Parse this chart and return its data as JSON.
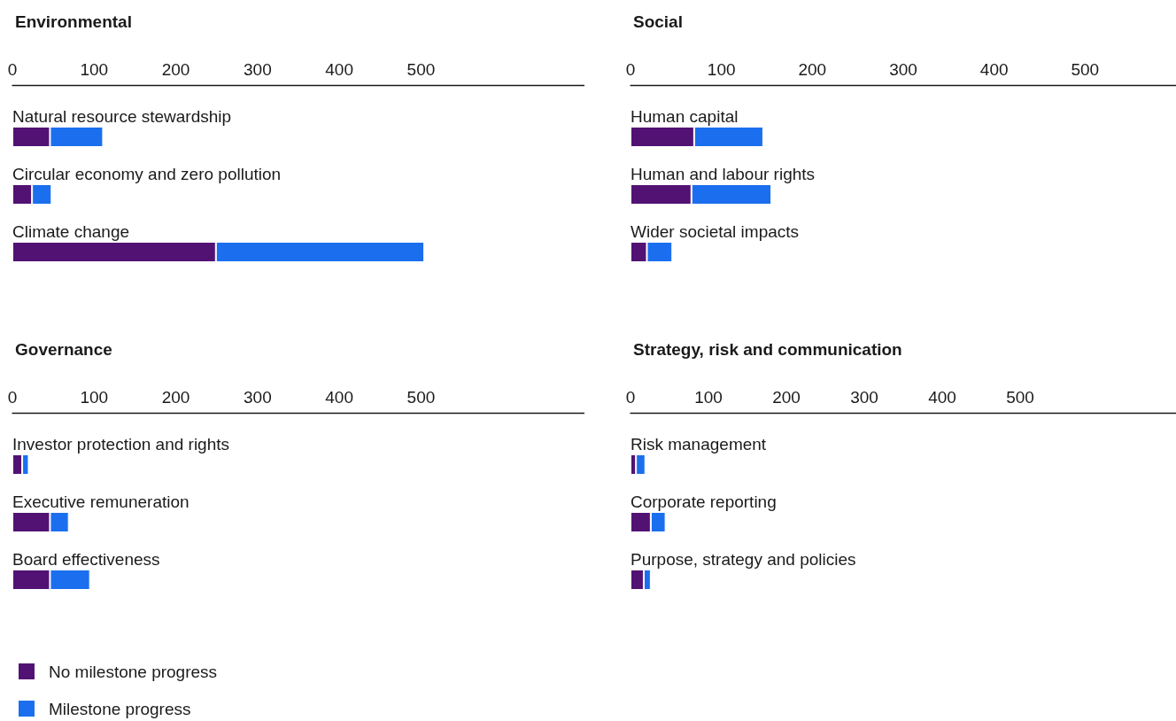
{
  "chart_data": [
    {
      "type": "bar",
      "orientation": "horizontal",
      "stacked": true,
      "title": "Environmental",
      "categories": [
        "Natural resource stewardship",
        "Circular economy and zero pollution",
        "Climate change"
      ],
      "xlim": [
        0,
        700
      ],
      "xticks": [
        0,
        100,
        200,
        300,
        400,
        500
      ],
      "grid": false,
      "legend": false,
      "series": [
        {
          "color": "#521273",
          "values": [
            46,
            24,
            249
          ]
        },
        {
          "color": "#1b6fee",
          "values": [
            65,
            24,
            255
          ]
        }
      ]
    },
    {
      "type": "bar",
      "orientation": "horizontal",
      "stacked": true,
      "title": "Social",
      "categories": [
        "Human capital",
        "Human and labour rights",
        "Wider societal impacts"
      ],
      "xlim": [
        0,
        600
      ],
      "xticks": [
        0,
        100,
        200,
        300,
        400,
        500
      ],
      "grid": false,
      "legend": false,
      "series": [
        {
          "color": "#521273",
          "values": [
            70,
            67,
            18
          ]
        },
        {
          "color": "#1b6fee",
          "values": [
            76,
            88,
            28
          ]
        }
      ]
    },
    {
      "type": "bar",
      "orientation": "horizontal",
      "stacked": true,
      "title": "Governance",
      "categories": [
        "Investor protection and rights",
        "Executive remuneration",
        "Board effectiveness"
      ],
      "xlim": [
        0,
        700
      ],
      "xticks": [
        0,
        100,
        200,
        300,
        400,
        500
      ],
      "grid": false,
      "legend": "bottom left",
      "series": [
        {
          "name": "No milestone progress",
          "color": "#521273",
          "values": [
            12,
            46,
            46
          ]
        },
        {
          "name": "Milestone progress",
          "color": "#1b6fee",
          "values": [
            8,
            23,
            49
          ]
        }
      ]
    },
    {
      "type": "bar",
      "orientation": "horizontal",
      "stacked": true,
      "title": "Strategy, risk and communication",
      "categories": [
        "Risk management",
        "Corporate reporting",
        "Purpose, strategy and policies"
      ],
      "xlim": [
        0,
        700
      ],
      "xticks": [
        0,
        100,
        200,
        300,
        400,
        500
      ],
      "grid": false,
      "legend": false,
      "series": [
        {
          "color": "#521273",
          "values": [
            7,
            26,
            17
          ]
        },
        {
          "color": "#1b6fee",
          "values": [
            12,
            19,
            9
          ]
        }
      ]
    }
  ]
}
